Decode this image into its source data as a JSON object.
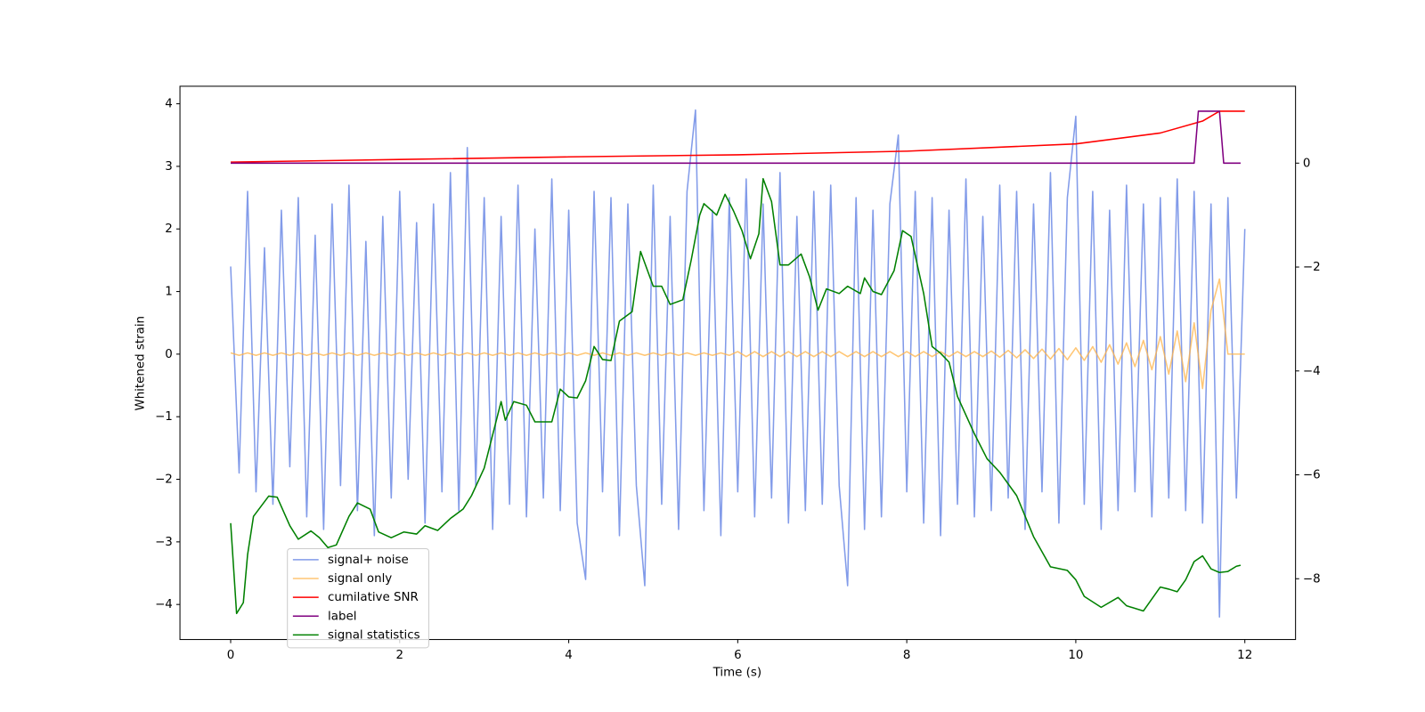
{
  "chart_data": {
    "type": "line",
    "xlabel": "Time (s)",
    "ylabel": "Whitened strain",
    "xlim": [
      -0.6,
      12.6
    ],
    "ylim": [
      -4.56,
      4.28
    ],
    "y2lim": [
      -9.17,
      1.48
    ],
    "xticks": [
      0,
      2,
      4,
      6,
      8,
      10,
      12
    ],
    "yticks": [
      {
        "value": -4,
        "label": "−4"
      },
      {
        "value": -3,
        "label": "−3"
      },
      {
        "value": -2,
        "label": "−2"
      },
      {
        "value": -1,
        "label": "−1"
      },
      0,
      1,
      2,
      3,
      4
    ],
    "y2ticks": [
      {
        "value": -8,
        "label": "−8"
      },
      {
        "value": -6,
        "label": "−6"
      },
      {
        "value": -4,
        "label": "−4"
      },
      {
        "value": -2,
        "label": "−2"
      },
      0
    ],
    "legend": "lower left",
    "x": [
      0,
      0.1,
      0.2,
      0.3,
      0.4,
      0.5,
      0.6,
      0.7,
      0.8,
      0.9,
      1,
      1.1,
      1.2,
      1.3,
      1.4,
      1.5,
      1.6,
      1.7,
      1.8,
      1.9,
      2,
      2.1,
      2.2,
      2.3,
      2.4,
      2.5,
      2.6,
      2.7,
      2.8,
      2.9,
      3,
      3.1,
      3.2,
      3.3,
      3.4,
      3.5,
      3.6,
      3.7,
      3.8,
      3.9,
      4,
      4.1,
      4.2,
      4.3,
      4.4,
      4.5,
      4.6,
      4.7,
      4.8,
      4.9,
      5,
      5.1,
      5.2,
      5.3,
      5.4,
      5.5,
      5.6,
      5.7,
      5.8,
      5.9,
      6,
      6.1,
      6.2,
      6.3,
      6.4,
      6.5,
      6.6,
      6.7,
      6.8,
      6.9,
      7,
      7.1,
      7.2,
      7.3,
      7.4,
      7.5,
      7.6,
      7.7,
      7.8,
      7.9,
      8,
      8.1,
      8.2,
      8.3,
      8.4,
      8.5,
      8.6,
      8.7,
      8.8,
      8.9,
      9,
      9.1,
      9.2,
      9.3,
      9.4,
      9.5,
      9.6,
      9.7,
      9.8,
      9.9,
      10,
      10.1,
      10.2,
      10.3,
      10.4,
      10.5,
      10.6,
      10.7,
      10.8,
      10.9,
      11,
      11.1,
      11.2,
      11.3,
      11.4,
      11.5,
      11.6,
      11.7,
      11.8,
      11.9,
      12
    ],
    "series": [
      {
        "name": "signal+ noise",
        "color": "#7b96e8",
        "axis": "y",
        "values": [
          1.4,
          -1.9,
          2.6,
          -2.2,
          1.7,
          -2.4,
          2.3,
          -1.8,
          2.5,
          -2.6,
          1.9,
          -2.8,
          2.4,
          -2.1,
          2.7,
          -2.5,
          1.8,
          -2.9,
          2.2,
          -2.3,
          2.6,
          -2.0,
          2.1,
          -2.7,
          2.4,
          -2.2,
          2.9,
          -2.5,
          3.3,
          -2.1,
          2.5,
          -2.8,
          2.2,
          -2.4,
          2.7,
          -2.6,
          2.0,
          -2.3,
          2.8,
          -2.5,
          2.3,
          -2.7,
          -3.6,
          2.6,
          -2.2,
          2.5,
          -2.9,
          2.4,
          -2.1,
          -3.7,
          2.7,
          -2.4,
          2.2,
          -2.8,
          2.6,
          3.9,
          -2.5,
          2.3,
          -2.9,
          2.5,
          -2.2,
          2.8,
          -2.6,
          2.4,
          -2.3,
          2.9,
          -2.7,
          2.2,
          -2.5,
          2.6,
          -2.4,
          2.7,
          -2.1,
          -3.7,
          2.5,
          -2.8,
          2.3,
          -2.6,
          2.4,
          3.5,
          -2.2,
          2.6,
          -2.7,
          2.5,
          -2.9,
          2.3,
          -2.4,
          2.8,
          -2.6,
          2.2,
          -2.5,
          2.7,
          -2.3,
          2.6,
          -2.8,
          2.4,
          -2.2,
          2.9,
          -2.7,
          2.5,
          3.8,
          -2.4,
          2.6,
          -2.8,
          2.3,
          -2.5,
          2.7,
          -2.2,
          2.4,
          -2.6,
          2.5,
          -2.3,
          2.8,
          -2.5,
          2.6,
          -2.7,
          2.4,
          -4.2,
          2.5,
          -2.3,
          2.0
        ]
      },
      {
        "name": "signal only",
        "color": "#ffb347",
        "axis": "y",
        "values": [
          0.02,
          -0.02,
          0.02,
          -0.02,
          0.02,
          -0.02,
          0.02,
          -0.02,
          0.02,
          -0.02,
          0.02,
          -0.02,
          0.02,
          -0.02,
          0.02,
          -0.02,
          0.02,
          -0.02,
          0.02,
          -0.02,
          0.02,
          -0.02,
          0.02,
          -0.02,
          0.02,
          -0.02,
          0.02,
          -0.02,
          0.02,
          -0.02,
          0.02,
          -0.02,
          0.02,
          -0.02,
          0.02,
          -0.02,
          0.02,
          -0.02,
          0.02,
          -0.02,
          0.02,
          -0.02,
          0.02,
          -0.02,
          0.02,
          -0.02,
          0.02,
          -0.02,
          0.02,
          -0.02,
          0.02,
          -0.02,
          0.02,
          -0.02,
          0.02,
          -0.02,
          0.02,
          -0.02,
          0.02,
          -0.02,
          0.04,
          -0.04,
          0.04,
          -0.04,
          0.04,
          -0.04,
          0.04,
          -0.04,
          0.04,
          -0.04,
          0.04,
          -0.04,
          0.04,
          -0.04,
          0.04,
          -0.04,
          0.04,
          -0.04,
          0.04,
          -0.04,
          0.04,
          -0.04,
          0.04,
          -0.04,
          0.04,
          -0.04,
          0.04,
          -0.04,
          0.04,
          -0.04,
          0.05,
          -0.05,
          0.06,
          -0.06,
          0.07,
          -0.07,
          0.08,
          -0.08,
          0.09,
          -0.09,
          0.1,
          -0.1,
          0.12,
          -0.13,
          0.15,
          -0.16,
          0.18,
          -0.2,
          0.22,
          -0.25,
          0.28,
          -0.32,
          0.37,
          -0.44,
          0.5,
          -0.55,
          0.7,
          1.2,
          0,
          0,
          0
        ]
      },
      {
        "name": "cumilative SNR",
        "color": "#ff0000",
        "axis": "y2",
        "x": [
          0,
          2,
          4,
          6,
          8,
          10,
          11,
          11.5,
          11.7,
          12
        ],
        "values": [
          0.02,
          0.07,
          0.12,
          0.16,
          0.23,
          0.37,
          0.58,
          0.81,
          1.0,
          1.0
        ]
      },
      {
        "name": "label",
        "color": "#800080",
        "axis": "y2",
        "x": [
          0,
          11.4,
          11.45,
          11.7,
          11.75,
          11.95
        ],
        "values": [
          0,
          0,
          1,
          1,
          0,
          0
        ]
      },
      {
        "name": "signal statistics",
        "color": "#008000",
        "axis": "y2",
        "x": [
          0,
          0.07,
          0.15,
          0.2,
          0.27,
          0.45,
          0.55,
          0.7,
          0.8,
          0.95,
          1.05,
          1.15,
          1.25,
          1.4,
          1.5,
          1.65,
          1.75,
          1.9,
          2.05,
          2.2,
          2.3,
          2.45,
          2.6,
          2.75,
          2.85,
          3.0,
          3.1,
          3.2,
          3.25,
          3.35,
          3.5,
          3.6,
          3.8,
          3.9,
          4.0,
          4.1,
          4.2,
          4.3,
          4.4,
          4.5,
          4.6,
          4.75,
          4.85,
          5.0,
          5.1,
          5.2,
          5.35,
          5.45,
          5.55,
          5.6,
          5.75,
          5.85,
          5.95,
          6.05,
          6.15,
          6.25,
          6.3,
          6.4,
          6.5,
          6.6,
          6.75,
          6.85,
          6.95,
          7.05,
          7.2,
          7.3,
          7.45,
          7.5,
          7.6,
          7.7,
          7.85,
          7.95,
          8.05,
          8.2,
          8.3,
          8.4,
          8.5,
          8.6,
          8.8,
          8.95,
          9.1,
          9.3,
          9.5,
          9.7,
          9.9,
          10.0,
          10.1,
          10.3,
          10.5,
          10.6,
          10.8,
          11.0,
          11.1,
          11.2,
          11.3,
          11.4,
          11.5,
          11.6,
          11.7,
          11.8,
          11.9,
          11.95
        ],
        "values": [
          -6.93,
          -8.67,
          -8.46,
          -7.54,
          -6.8,
          -6.41,
          -6.43,
          -6.98,
          -7.24,
          -7.08,
          -7.21,
          -7.4,
          -7.35,
          -6.8,
          -6.54,
          -6.66,
          -7.1,
          -7.21,
          -7.1,
          -7.14,
          -6.98,
          -7.07,
          -6.84,
          -6.66,
          -6.4,
          -5.87,
          -5.23,
          -4.59,
          -4.95,
          -4.59,
          -4.66,
          -4.98,
          -4.98,
          -4.35,
          -4.5,
          -4.52,
          -4.19,
          -3.53,
          -3.78,
          -3.8,
          -3.04,
          -2.86,
          -1.7,
          -2.37,
          -2.37,
          -2.72,
          -2.63,
          -1.86,
          -1.0,
          -0.78,
          -1.0,
          -0.6,
          -0.92,
          -1.3,
          -1.84,
          -1.36,
          -0.3,
          -0.74,
          -1.96,
          -1.96,
          -1.75,
          -2.19,
          -2.83,
          -2.42,
          -2.51,
          -2.37,
          -2.51,
          -2.21,
          -2.47,
          -2.53,
          -2.07,
          -1.3,
          -1.41,
          -2.51,
          -3.53,
          -3.66,
          -3.83,
          -4.49,
          -5.21,
          -5.69,
          -5.95,
          -6.4,
          -7.19,
          -7.77,
          -7.84,
          -8.02,
          -8.34,
          -8.55,
          -8.36,
          -8.52,
          -8.62,
          -8.16,
          -8.2,
          -8.25,
          -8.02,
          -7.67,
          -7.56,
          -7.81,
          -7.88,
          -7.86,
          -7.76,
          -7.74
        ]
      }
    ]
  }
}
